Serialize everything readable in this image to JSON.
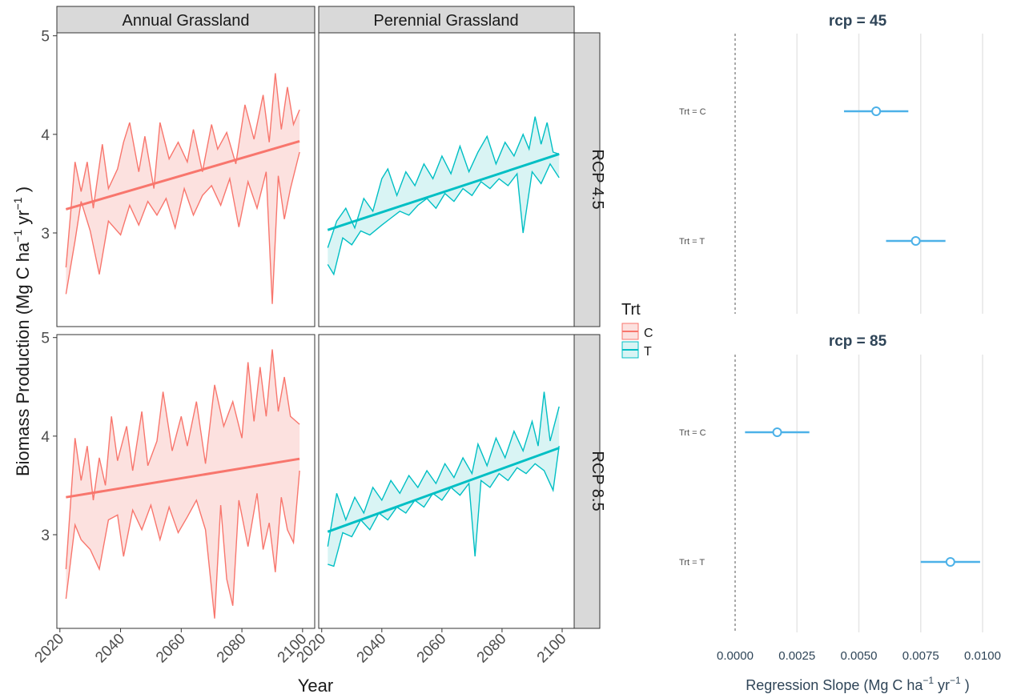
{
  "colors": {
    "C": "#F8766D",
    "C_ribbon": "#FCE1DF",
    "T": "#00BFC4",
    "T_ribbon": "#D9F4F4",
    "strip_fill": "#D9D9D9",
    "forest": "#4CB1E8",
    "forest_title": "#2F4558",
    "forest_grid": "#E6E6E6"
  },
  "chart_data": [
    {
      "type": "line",
      "facet_rows": [
        "RCP 4.5",
        "RCP 8.5"
      ],
      "facet_cols": [
        "Annual Grassland",
        "Perennial Grassland"
      ],
      "xlabel": "Year",
      "ylabel": "Biomass Production (Mg C ha",
      "ylabel_sup1": "−1",
      "ylabel_mid": " yr",
      "ylabel_sup2": "−1",
      "ylabel_end": " )",
      "x_ticks": [
        2020,
        2040,
        2060,
        2080,
        2100
      ],
      "y_ticks": [
        3,
        4,
        5
      ],
      "xlim": [
        2019,
        2104
      ],
      "ylim": [
        2.05,
        5.03
      ],
      "legend": {
        "title": "Trt",
        "position": "right",
        "entries": [
          "C",
          "T"
        ]
      },
      "panels": [
        {
          "row": "RCP 4.5",
          "col": "Annual Grassland",
          "series": "C",
          "trend": {
            "x": [
              2022,
              2099
            ],
            "y": [
              3.24,
              3.93
            ]
          },
          "lower": [
            [
              2022,
              2.38
            ],
            [
              2025,
              2.92
            ],
            [
              2027,
              3.32
            ],
            [
              2030,
              3.02
            ],
            [
              2033,
              2.58
            ],
            [
              2036,
              3.12
            ],
            [
              2040,
              2.98
            ],
            [
              2043,
              3.28
            ],
            [
              2046,
              3.08
            ],
            [
              2049,
              3.32
            ],
            [
              2052,
              3.18
            ],
            [
              2055,
              3.35
            ],
            [
              2058,
              3.05
            ],
            [
              2061,
              3.45
            ],
            [
              2064,
              3.18
            ],
            [
              2067,
              3.38
            ],
            [
              2070,
              3.48
            ],
            [
              2073,
              3.28
            ],
            [
              2076,
              3.55
            ],
            [
              2079,
              3.06
            ],
            [
              2082,
              3.52
            ],
            [
              2085,
              3.25
            ],
            [
              2088,
              3.62
            ],
            [
              2090,
              2.28
            ],
            [
              2092,
              3.58
            ],
            [
              2094,
              3.14
            ],
            [
              2096,
              3.45
            ],
            [
              2099,
              3.82
            ]
          ],
          "upper": [
            [
              2022,
              2.65
            ],
            [
              2025,
              3.72
            ],
            [
              2027,
              3.42
            ],
            [
              2029,
              3.72
            ],
            [
              2031,
              3.25
            ],
            [
              2034,
              3.9
            ],
            [
              2036,
              3.45
            ],
            [
              2039,
              3.65
            ],
            [
              2041,
              3.92
            ],
            [
              2043,
              4.12
            ],
            [
              2046,
              3.62
            ],
            [
              2048,
              3.98
            ],
            [
              2051,
              3.45
            ],
            [
              2053,
              4.12
            ],
            [
              2056,
              3.75
            ],
            [
              2059,
              3.92
            ],
            [
              2062,
              3.72
            ],
            [
              2064,
              4.05
            ],
            [
              2067,
              3.62
            ],
            [
              2070,
              4.1
            ],
            [
              2072,
              3.85
            ],
            [
              2075,
              4.02
            ],
            [
              2078,
              3.7
            ],
            [
              2081,
              4.3
            ],
            [
              2084,
              3.95
            ],
            [
              2087,
              4.4
            ],
            [
              2089,
              3.92
            ],
            [
              2091,
              4.62
            ],
            [
              2093,
              4.05
            ],
            [
              2095,
              4.48
            ],
            [
              2097,
              4.1
            ],
            [
              2099,
              4.25
            ]
          ]
        },
        {
          "row": "RCP 4.5",
          "col": "Perennial Grassland",
          "series": "T",
          "trend": {
            "x": [
              2022,
              2099
            ],
            "y": [
              3.03,
              3.8
            ]
          },
          "lower": [
            [
              2022,
              2.68
            ],
            [
              2024,
              2.58
            ],
            [
              2027,
              2.95
            ],
            [
              2030,
              2.88
            ],
            [
              2033,
              3.02
            ],
            [
              2036,
              2.98
            ],
            [
              2040,
              3.08
            ],
            [
              2043,
              3.15
            ],
            [
              2046,
              3.22
            ],
            [
              2049,
              3.18
            ],
            [
              2052,
              3.28
            ],
            [
              2055,
              3.35
            ],
            [
              2058,
              3.25
            ],
            [
              2061,
              3.4
            ],
            [
              2064,
              3.32
            ],
            [
              2067,
              3.45
            ],
            [
              2070,
              3.38
            ],
            [
              2073,
              3.52
            ],
            [
              2076,
              3.45
            ],
            [
              2079,
              3.55
            ],
            [
              2082,
              3.48
            ],
            [
              2085,
              3.6
            ],
            [
              2087,
              3.0
            ],
            [
              2090,
              3.62
            ],
            [
              2093,
              3.5
            ],
            [
              2096,
              3.7
            ],
            [
              2099,
              3.56
            ]
          ],
          "upper": [
            [
              2022,
              2.85
            ],
            [
              2025,
              3.12
            ],
            [
              2028,
              3.25
            ],
            [
              2031,
              3.05
            ],
            [
              2034,
              3.35
            ],
            [
              2037,
              3.22
            ],
            [
              2040,
              3.55
            ],
            [
              2042,
              3.65
            ],
            [
              2045,
              3.38
            ],
            [
              2048,
              3.62
            ],
            [
              2051,
              3.48
            ],
            [
              2054,
              3.7
            ],
            [
              2057,
              3.55
            ],
            [
              2060,
              3.78
            ],
            [
              2063,
              3.6
            ],
            [
              2066,
              3.88
            ],
            [
              2069,
              3.62
            ],
            [
              2072,
              3.82
            ],
            [
              2075,
              3.98
            ],
            [
              2078,
              3.7
            ],
            [
              2081,
              3.92
            ],
            [
              2084,
              3.78
            ],
            [
              2087,
              4.0
            ],
            [
              2089,
              3.85
            ],
            [
              2091,
              4.18
            ],
            [
              2093,
              3.9
            ],
            [
              2095,
              4.12
            ],
            [
              2097,
              3.82
            ],
            [
              2099,
              3.8
            ]
          ]
        },
        {
          "row": "RCP 8.5",
          "col": "Annual Grassland",
          "series": "C",
          "trend": {
            "x": [
              2022,
              2099
            ],
            "y": [
              3.38,
              3.77
            ]
          },
          "lower": [
            [
              2022,
              2.35
            ],
            [
              2025,
              3.1
            ],
            [
              2027,
              2.95
            ],
            [
              2030,
              2.85
            ],
            [
              2033,
              2.65
            ],
            [
              2036,
              3.15
            ],
            [
              2039,
              3.2
            ],
            [
              2041,
              2.78
            ],
            [
              2044,
              3.25
            ],
            [
              2047,
              3.05
            ],
            [
              2050,
              3.3
            ],
            [
              2053,
              2.95
            ],
            [
              2056,
              3.28
            ],
            [
              2059,
              3.02
            ],
            [
              2062,
              3.18
            ],
            [
              2065,
              3.35
            ],
            [
              2068,
              3.05
            ],
            [
              2071,
              2.15
            ],
            [
              2073,
              3.3
            ],
            [
              2075,
              2.55
            ],
            [
              2077,
              2.28
            ],
            [
              2079,
              3.35
            ],
            [
              2082,
              2.88
            ],
            [
              2085,
              3.42
            ],
            [
              2087,
              2.85
            ],
            [
              2089,
              3.12
            ],
            [
              2091,
              2.62
            ],
            [
              2093,
              3.38
            ],
            [
              2095,
              3.05
            ],
            [
              2097,
              2.92
            ],
            [
              2099,
              3.65
            ]
          ],
          "upper": [
            [
              2022,
              2.65
            ],
            [
              2025,
              3.98
            ],
            [
              2027,
              3.55
            ],
            [
              2029,
              3.9
            ],
            [
              2031,
              3.35
            ],
            [
              2033,
              3.78
            ],
            [
              2035,
              3.5
            ],
            [
              2037,
              4.2
            ],
            [
              2039,
              3.75
            ],
            [
              2042,
              4.1
            ],
            [
              2044,
              3.65
            ],
            [
              2047,
              4.25
            ],
            [
              2049,
              3.7
            ],
            [
              2052,
              3.95
            ],
            [
              2054,
              4.45
            ],
            [
              2057,
              3.85
            ],
            [
              2060,
              4.2
            ],
            [
              2062,
              3.9
            ],
            [
              2065,
              4.35
            ],
            [
              2068,
              3.72
            ],
            [
              2071,
              4.52
            ],
            [
              2074,
              4.1
            ],
            [
              2077,
              4.35
            ],
            [
              2080,
              3.98
            ],
            [
              2082,
              4.75
            ],
            [
              2084,
              4.15
            ],
            [
              2086,
              4.7
            ],
            [
              2088,
              4.2
            ],
            [
              2090,
              4.88
            ],
            [
              2092,
              4.25
            ],
            [
              2094,
              4.6
            ],
            [
              2096,
              4.2
            ],
            [
              2099,
              4.12
            ]
          ]
        },
        {
          "row": "RCP 8.5",
          "col": "Perennial Grassland",
          "series": "T",
          "trend": {
            "x": [
              2022,
              2099
            ],
            "y": [
              3.03,
              3.88
            ]
          },
          "lower": [
            [
              2022,
              2.7
            ],
            [
              2024,
              2.68
            ],
            [
              2027,
              3.02
            ],
            [
              2030,
              2.98
            ],
            [
              2033,
              3.15
            ],
            [
              2036,
              3.05
            ],
            [
              2039,
              3.22
            ],
            [
              2042,
              3.15
            ],
            [
              2045,
              3.28
            ],
            [
              2048,
              3.22
            ],
            [
              2051,
              3.35
            ],
            [
              2054,
              3.28
            ],
            [
              2057,
              3.42
            ],
            [
              2060,
              3.35
            ],
            [
              2063,
              3.48
            ],
            [
              2066,
              3.4
            ],
            [
              2069,
              3.52
            ],
            [
              2071,
              2.78
            ],
            [
              2073,
              3.55
            ],
            [
              2076,
              3.48
            ],
            [
              2079,
              3.62
            ],
            [
              2082,
              3.55
            ],
            [
              2085,
              3.68
            ],
            [
              2088,
              3.62
            ],
            [
              2091,
              3.72
            ],
            [
              2094,
              3.65
            ],
            [
              2097,
              3.45
            ],
            [
              2099,
              3.9
            ]
          ],
          "upper": [
            [
              2022,
              2.88
            ],
            [
              2025,
              3.42
            ],
            [
              2028,
              3.15
            ],
            [
              2031,
              3.38
            ],
            [
              2034,
              3.22
            ],
            [
              2037,
              3.48
            ],
            [
              2040,
              3.35
            ],
            [
              2043,
              3.55
            ],
            [
              2046,
              3.42
            ],
            [
              2049,
              3.6
            ],
            [
              2052,
              3.48
            ],
            [
              2055,
              3.65
            ],
            [
              2058,
              3.52
            ],
            [
              2061,
              3.72
            ],
            [
              2064,
              3.58
            ],
            [
              2067,
              3.78
            ],
            [
              2070,
              3.62
            ],
            [
              2072,
              3.92
            ],
            [
              2075,
              3.7
            ],
            [
              2078,
              3.98
            ],
            [
              2081,
              3.78
            ],
            [
              2084,
              4.05
            ],
            [
              2087,
              3.85
            ],
            [
              2090,
              4.15
            ],
            [
              2092,
              3.9
            ],
            [
              2094,
              4.45
            ],
            [
              2096,
              3.95
            ],
            [
              2099,
              4.3
            ]
          ]
        }
      ]
    },
    {
      "type": "scatter",
      "subtype": "point-range",
      "panels": [
        {
          "title": "rcp = 45",
          "rows": [
            {
              "label": "Trt = C",
              "estimate": 0.0057,
              "low": 0.0044,
              "high": 0.007
            },
            {
              "label": "Trt = T",
              "estimate": 0.0073,
              "low": 0.0061,
              "high": 0.0085
            }
          ]
        },
        {
          "title": "rcp = 85",
          "rows": [
            {
              "label": "Trt = C",
              "estimate": 0.0017,
              "low": 0.0004,
              "high": 0.003
            },
            {
              "label": "Trt = T",
              "estimate": 0.0087,
              "low": 0.0075,
              "high": 0.0099
            }
          ]
        }
      ],
      "x_ticks": [
        "0.0000",
        "0.0025",
        "0.0050",
        "0.0075",
        "0.0100"
      ],
      "xlim": [
        -0.001,
        0.0103
      ],
      "xlabel": "Regression Slope (Mg C ha",
      "xlabel_sup1": "−1",
      "xlabel_mid": " yr",
      "xlabel_sup2": "−1",
      "xlabel_end": " )",
      "reference_line": 0
    }
  ]
}
